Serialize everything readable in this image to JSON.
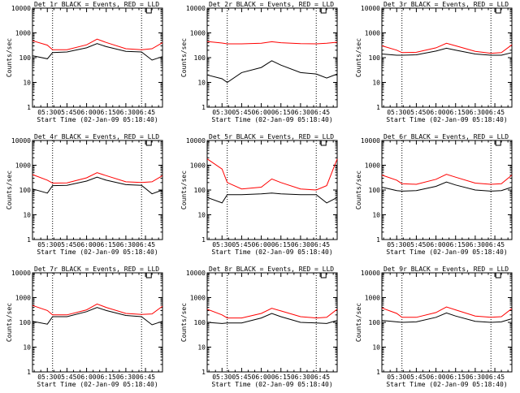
{
  "chart_data": [
    {
      "type": "line",
      "title": "Det 1r BLACK = Events, RED = LLD",
      "xlabel": "Start Time (02-Jan-09 05:18:40)",
      "ylabel": "Counts/sec",
      "yscale": "log",
      "ylim": [
        1,
        10000
      ],
      "xlim": [
        "05:18:40",
        "06:58:00"
      ],
      "x_ticks": [
        "05:30",
        "05:45",
        "06:00",
        "06:15",
        "06:30",
        "06:45"
      ],
      "y_ticks": [
        "1",
        "10",
        "100",
        "1000",
        "10000"
      ],
      "vlines": [
        "05:34",
        "06:42"
      ],
      "x": [
        "05:18:40",
        "05:30",
        "05:34",
        "05:45",
        "06:00",
        "06:08",
        "06:15",
        "06:30",
        "06:42",
        "06:50",
        "06:58"
      ],
      "series": [
        {
          "name": "BLACK = Events",
          "color": "#000000",
          "values": [
            120,
            90,
            160,
            170,
            250,
            370,
            280,
            180,
            170,
            80,
            110
          ]
        },
        {
          "name": "RED = LLD",
          "color": "#ff0000",
          "values": [
            480,
            320,
            210,
            210,
            330,
            560,
            410,
            230,
            210,
            230,
            400
          ]
        }
      ]
    },
    {
      "type": "line",
      "title": "Det 2r BLACK = Events, RED = LLD",
      "xlabel": "Start Time (02-Jan-09 05:18:40)",
      "ylabel": "Counts/sec",
      "yscale": "log",
      "ylim": [
        1,
        10000
      ],
      "xlim": [
        "05:18:40",
        "06:58:00"
      ],
      "x_ticks": [
        "05:30",
        "05:45",
        "06:00",
        "06:15",
        "06:30",
        "06:45"
      ],
      "y_ticks": [
        "1",
        "10",
        "100",
        "1000",
        "10000"
      ],
      "vlines": [
        "05:34",
        "06:42"
      ],
      "x": [
        "05:18:40",
        "05:30",
        "05:34",
        "05:45",
        "06:00",
        "06:08",
        "06:15",
        "06:30",
        "06:42",
        "06:50",
        "06:58"
      ],
      "series": [
        {
          "name": "BLACK = Events",
          "color": "#000000",
          "values": [
            20,
            14,
            10,
            25,
            40,
            75,
            50,
            25,
            22,
            15,
            22
          ]
        },
        {
          "name": "RED = LLD",
          "color": "#ff0000",
          "values": [
            450,
            390,
            360,
            360,
            380,
            440,
            400,
            370,
            360,
            380,
            420
          ]
        }
      ]
    },
    {
      "type": "line",
      "title": "Det 3r BLACK = Events, RED = LLD",
      "xlabel": "Start Time (02-Jan-09 05:18:40)",
      "ylabel": "Counts/sec",
      "yscale": "log",
      "ylim": [
        1,
        10000
      ],
      "xlim": [
        "05:18:40",
        "06:58:00"
      ],
      "x_ticks": [
        "05:30",
        "05:45",
        "06:00",
        "06:15",
        "06:30",
        "06:45"
      ],
      "y_ticks": [
        "1",
        "10",
        "100",
        "1000",
        "10000"
      ],
      "vlines": [
        "05:34",
        "06:42"
      ],
      "x": [
        "05:18:40",
        "05:30",
        "05:34",
        "05:45",
        "06:00",
        "06:08",
        "06:15",
        "06:30",
        "06:42",
        "06:50",
        "06:58"
      ],
      "series": [
        {
          "name": "BLACK = Events",
          "color": "#000000",
          "values": [
            140,
            125,
            125,
            130,
            185,
            240,
            200,
            140,
            125,
            125,
            160
          ]
        },
        {
          "name": "RED = LLD",
          "color": "#ff0000",
          "values": [
            300,
            200,
            160,
            165,
            250,
            380,
            300,
            180,
            150,
            160,
            330
          ]
        }
      ]
    },
    {
      "type": "line",
      "title": "Det 4r BLACK = Events, RED = LLD",
      "xlabel": "Start Time (02-Jan-09 05:18:40)",
      "ylabel": "Counts/sec",
      "yscale": "log",
      "ylim": [
        1,
        10000
      ],
      "xlim": [
        "05:18:40",
        "06:58:00"
      ],
      "x_ticks": [
        "05:30",
        "05:45",
        "06:00",
        "06:15",
        "06:30",
        "06:45"
      ],
      "y_ticks": [
        "1",
        "10",
        "100",
        "1000",
        "10000"
      ],
      "vlines": [
        "05:34",
        "06:42"
      ],
      "x": [
        "05:18:40",
        "05:30",
        "05:34",
        "05:45",
        "06:00",
        "06:08",
        "06:15",
        "06:30",
        "06:42",
        "06:50",
        "06:58"
      ],
      "series": [
        {
          "name": "BLACK = Events",
          "color": "#000000",
          "values": [
            110,
            75,
            150,
            155,
            230,
            330,
            250,
            165,
            155,
            70,
            100
          ]
        },
        {
          "name": "RED = LLD",
          "color": "#ff0000",
          "values": [
            420,
            250,
            190,
            195,
            310,
            500,
            380,
            215,
            200,
            215,
            380
          ]
        }
      ]
    },
    {
      "type": "line",
      "title": "Det 5r BLACK = Events, RED = LLD",
      "xlabel": "Start Time (02-Jan-09 05:18:40)",
      "ylabel": "Counts/sec",
      "yscale": "log",
      "ylim": [
        1,
        10000
      ],
      "xlim": [
        "05:18:40",
        "06:58:00"
      ],
      "x_ticks": [
        "05:30",
        "05:45",
        "06:00",
        "06:15",
        "06:30",
        "06:45"
      ],
      "y_ticks": [
        "1",
        "10",
        "100",
        "1000",
        "10000"
      ],
      "vlines": [
        "05:34",
        "06:42"
      ],
      "x": [
        "05:18:40",
        "05:30",
        "05:34",
        "05:45",
        "06:00",
        "06:08",
        "06:15",
        "06:30",
        "06:42",
        "06:50",
        "06:58"
      ],
      "series": [
        {
          "name": "BLACK = Events",
          "color": "#000000",
          "values": [
            50,
            30,
            65,
            65,
            70,
            75,
            70,
            65,
            65,
            30,
            50
          ]
        },
        {
          "name": "RED = LLD",
          "color": "#ff0000",
          "values": [
            1800,
            700,
            200,
            110,
            130,
            280,
            200,
            110,
            100,
            150,
            1800
          ]
        }
      ]
    },
    {
      "type": "line",
      "title": "Det 6r BLACK = Events, RED = LLD",
      "xlabel": "Start Time (02-Jan-09 05:18:40)",
      "ylabel": "Counts/sec",
      "yscale": "log",
      "ylim": [
        1,
        10000
      ],
      "xlim": [
        "05:18:40",
        "06:58:00"
      ],
      "x_ticks": [
        "05:30",
        "05:45",
        "06:00",
        "06:15",
        "06:30",
        "06:45"
      ],
      "y_ticks": [
        "1",
        "10",
        "100",
        "1000",
        "10000"
      ],
      "vlines": [
        "05:34",
        "06:42"
      ],
      "x": [
        "05:18:40",
        "05:30",
        "05:34",
        "05:45",
        "06:00",
        "06:08",
        "06:15",
        "06:30",
        "06:42",
        "06:50",
        "06:58"
      ],
      "series": [
        {
          "name": "BLACK = Events",
          "color": "#000000",
          "values": [
            130,
            95,
            90,
            95,
            140,
            210,
            160,
            100,
            90,
            95,
            130
          ]
        },
        {
          "name": "RED = LLD",
          "color": "#ff0000",
          "values": [
            400,
            250,
            180,
            170,
            270,
            430,
            330,
            190,
            170,
            180,
            400
          ]
        }
      ]
    },
    {
      "type": "line",
      "title": "Det 7r BLACK = Events, RED = LLD",
      "xlabel": "Start Time (02-Jan-09 05:18:40)",
      "ylabel": "Counts/sec",
      "yscale": "log",
      "ylim": [
        1,
        10000
      ],
      "xlim": [
        "05:18:40",
        "06:58:00"
      ],
      "x_ticks": [
        "05:30",
        "05:45",
        "06:00",
        "06:15",
        "06:30",
        "06:45"
      ],
      "y_ticks": [
        "1",
        "10",
        "100",
        "1000",
        "10000"
      ],
      "vlines": [
        "05:34",
        "06:42"
      ],
      "x": [
        "05:18:40",
        "05:30",
        "05:34",
        "05:45",
        "06:00",
        "06:08",
        "06:15",
        "06:30",
        "06:42",
        "06:50",
        "06:58"
      ],
      "series": [
        {
          "name": "BLACK = Events",
          "color": "#000000",
          "values": [
            110,
            85,
            170,
            170,
            270,
            400,
            300,
            190,
            170,
            80,
            110
          ]
        },
        {
          "name": "RED = LLD",
          "color": "#ff0000",
          "values": [
            480,
            300,
            200,
            200,
            320,
            550,
            400,
            230,
            210,
            220,
            450
          ]
        }
      ]
    },
    {
      "type": "line",
      "title": "Det 8r BLACK = Events, RED = LLD",
      "xlabel": "Start Time (02-Jan-09 05:18:40)",
      "ylabel": "Counts/sec",
      "yscale": "log",
      "ylim": [
        1,
        10000
      ],
      "xlim": [
        "05:18:40",
        "06:58:00"
      ],
      "x_ticks": [
        "05:30",
        "05:45",
        "06:00",
        "06:15",
        "06:30",
        "06:45"
      ],
      "y_ticks": [
        "1",
        "10",
        "100",
        "1000",
        "10000"
      ],
      "vlines": [
        "05:34",
        "06:42"
      ],
      "x": [
        "05:18:40",
        "05:30",
        "05:34",
        "05:45",
        "06:00",
        "06:08",
        "06:15",
        "06:30",
        "06:42",
        "06:50",
        "06:58"
      ],
      "series": [
        {
          "name": "BLACK = Events",
          "color": "#000000",
          "values": [
            100,
            90,
            95,
            95,
            150,
            230,
            170,
            100,
            95,
            90,
            120
          ]
        },
        {
          "name": "RED = LLD",
          "color": "#ff0000",
          "values": [
            340,
            200,
            150,
            150,
            230,
            370,
            290,
            170,
            150,
            160,
            340
          ]
        }
      ]
    },
    {
      "type": "line",
      "title": "Det 9r BLACK = Events, RED = LLD",
      "xlabel": "Start Time (02-Jan-09 05:18:40)",
      "ylabel": "Counts/sec",
      "yscale": "log",
      "ylim": [
        1,
        10000
      ],
      "xlim": [
        "05:18:40",
        "06:58:00"
      ],
      "x_ticks": [
        "05:30",
        "05:45",
        "06:00",
        "06:15",
        "06:30",
        "06:45"
      ],
      "y_ticks": [
        "1",
        "10",
        "100",
        "1000",
        "10000"
      ],
      "vlines": [
        "05:34",
        "06:42"
      ],
      "x": [
        "05:18:40",
        "05:30",
        "05:34",
        "05:45",
        "06:00",
        "06:08",
        "06:15",
        "06:30",
        "06:42",
        "06:50",
        "06:58"
      ],
      "series": [
        {
          "name": "BLACK = Events",
          "color": "#000000",
          "values": [
            120,
            105,
            100,
            105,
            160,
            240,
            180,
            110,
            100,
            105,
            140
          ]
        },
        {
          "name": "RED = LLD",
          "color": "#ff0000",
          "values": [
            380,
            230,
            160,
            160,
            250,
            420,
            320,
            180,
            160,
            170,
            360
          ]
        }
      ]
    }
  ]
}
